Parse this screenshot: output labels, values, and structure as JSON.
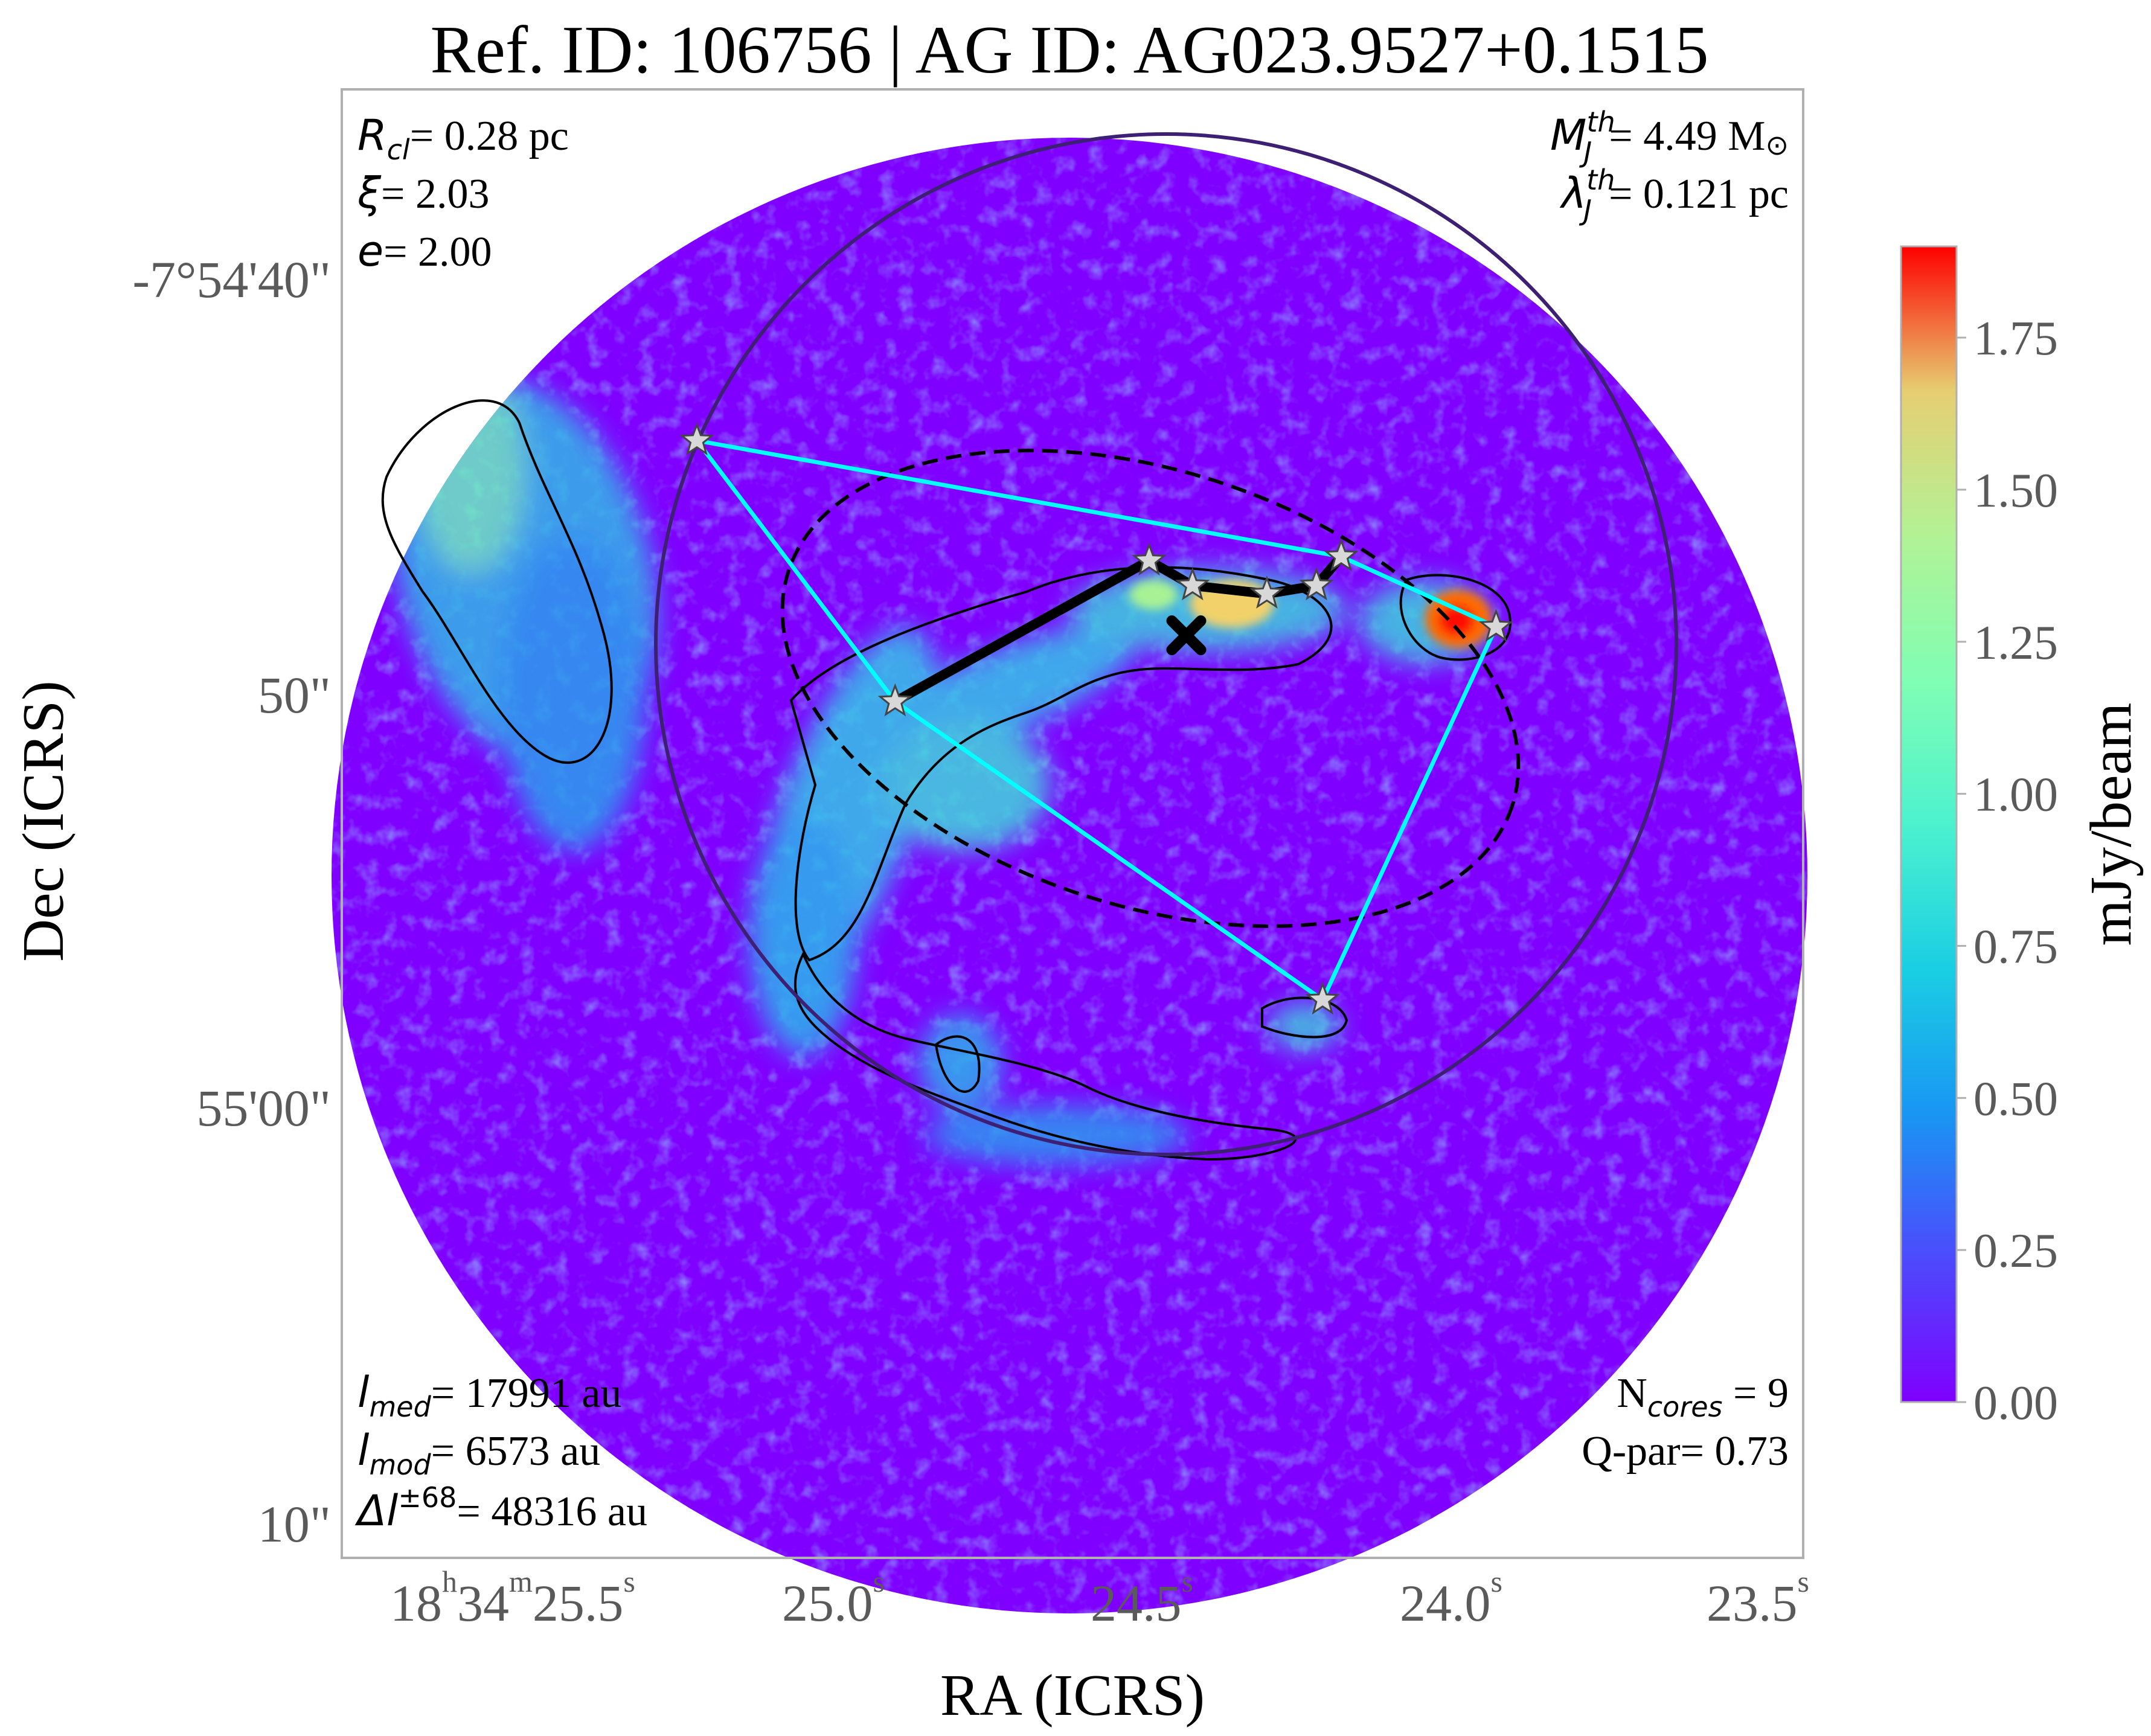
{
  "chart_data": {
    "type": "heatmap",
    "title": "Ref. ID: 106756 | AG ID: AG023.9527+0.1515",
    "xlabel": "RA (ICRS)",
    "ylabel": "Dec (ICRS)",
    "x_ticks": [
      {
        "h": "18",
        "m": "34",
        "s": "25.5",
        "ra_sec": 25.5
      },
      {
        "s": "25.0",
        "ra_sec": 25.0
      },
      {
        "s": "24.5",
        "ra_sec": 24.5
      },
      {
        "s": "24.0",
        "ra_sec": 24.0
      },
      {
        "s": "23.5",
        "ra_sec": 23.5
      }
    ],
    "y_ticks": [
      {
        "label": "-7°54'40\"",
        "dec_arcsec": -40
      },
      {
        "label": "50\"",
        "dec_arcsec": -50
      },
      {
        "label": "55'00\"",
        "dec_arcsec": -60
      },
      {
        "label": "10\"",
        "dec_arcsec": -70
      }
    ],
    "ra_range_sec": [
      25.8,
      23.48
    ],
    "dec_range_arcsec": [
      -33.0,
      -71.0
    ],
    "colorbar": {
      "label": "mJy/beam",
      "range": [
        0.0,
        1.9
      ],
      "ticks": [
        "0.00",
        "0.25",
        "0.50",
        "0.75",
        "1.00",
        "1.25",
        "1.50",
        "1.75"
      ],
      "colormap": "rainbow"
    },
    "cores": [
      {
        "ra_sec": 25.27,
        "dec_arcsec": -43.8
      },
      {
        "ra_sec": 24.95,
        "dec_arcsec": -50.1
      },
      {
        "ra_sec": 24.54,
        "dec_arcsec": -46.7
      },
      {
        "ra_sec": 24.47,
        "dec_arcsec": -47.3
      },
      {
        "ra_sec": 24.35,
        "dec_arcsec": -47.5
      },
      {
        "ra_sec": 24.27,
        "dec_arcsec": -47.3
      },
      {
        "ra_sec": 24.23,
        "dec_arcsec": -46.6
      },
      {
        "ra_sec": 23.98,
        "dec_arcsec": -48.3
      },
      {
        "ra_sec": 24.26,
        "dec_arcsec": -57.3
      }
    ],
    "mst_edges_cyan": [
      [
        0,
        1
      ],
      [
        0,
        6
      ],
      [
        1,
        8
      ],
      [
        6,
        7
      ],
      [
        7,
        8
      ]
    ],
    "mst_edges_black": [
      [
        1,
        2
      ],
      [
        2,
        3
      ],
      [
        3,
        4
      ],
      [
        4,
        5
      ],
      [
        5,
        6
      ]
    ],
    "centroid": {
      "ra_sec": 24.48,
      "dec_arcsec": -48.5
    },
    "clump_circle": {
      "ra_sec": 24.47,
      "dec_arcsec": -48.5,
      "radius_arcsec": 13.0
    },
    "fit_ellipse": {
      "ra_sec": 24.55,
      "dec_arcsec": -50.0,
      "semi_major_arcsec": 9.6,
      "semi_minor_arcsec": 5.5,
      "angle_deg": -14
    },
    "annotations": {
      "r_cl": "= 0.28 pc",
      "xi": "= 2.03",
      "e": "= 2.00",
      "mj": "= 4.49 M",
      "lambdaj": "= 0.121 pc",
      "lmed": "= 17991 au",
      "lmod": "= 6573 au",
      "dl": "= 48316 au",
      "ncores": " = 9",
      "qpar": "Q-par= 0.73"
    },
    "grid": false
  },
  "colors": {
    "background_low": "#7f00ff",
    "mst_cyan": "#00ffff",
    "mst_black": "#000000",
    "circle": "#3d1f73",
    "frame": "#b0b0b0",
    "tick_text": "#5a5a5a"
  }
}
